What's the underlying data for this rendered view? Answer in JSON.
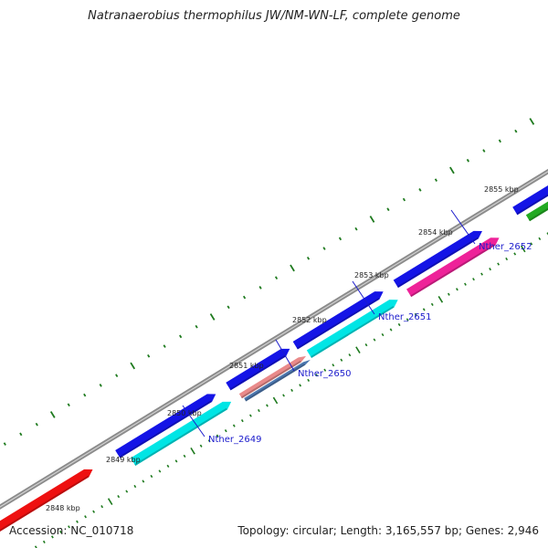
{
  "title": "Natranaerobius thermophilus JW/NM-WN-LF, complete genome",
  "footer": {
    "accession": "Accession: NC_010718",
    "summary": "Topology: circular; Length: 3,165,557 bp; Genes: 2,946"
  },
  "colors": {
    "backbone": "#8c8c8c",
    "tick": "#1e7a1e",
    "label_link": "#1b1bcc",
    "gene_blue": "#1414e6",
    "gene_cyan": "#00e5e5",
    "gene_red": "#ee1111",
    "gene_pink": "#ee2299",
    "gene_salmon": "#e98a8a",
    "gene_steel": "#4d78b0",
    "gene_green": "#22aa22"
  },
  "ruler_ticks": [
    {
      "label": "2848 kbp"
    },
    {
      "label": "2849 kbp"
    },
    {
      "label": "2850 kbp"
    },
    {
      "label": "2851 kbp"
    },
    {
      "label": "2852 kbp"
    },
    {
      "label": "2853 kbp"
    },
    {
      "label": "2854 kbp"
    },
    {
      "label": "2855 kbp"
    }
  ],
  "genes": [
    {
      "color": "gene_red"
    },
    {
      "color": "gene_blue"
    },
    {
      "color": "gene_cyan",
      "label": "Nther_2649"
    },
    {
      "color": "gene_blue"
    },
    {
      "color": "gene_salmon",
      "label": "Nther_2650"
    },
    {
      "color": "gene_steel"
    },
    {
      "color": "gene_blue"
    },
    {
      "color": "gene_cyan",
      "label": "Nther_2651"
    },
    {
      "color": "gene_blue"
    },
    {
      "color": "gene_pink",
      "label": "Nther_2652"
    },
    {
      "color": "gene_blue"
    },
    {
      "color": "gene_green"
    }
  ]
}
